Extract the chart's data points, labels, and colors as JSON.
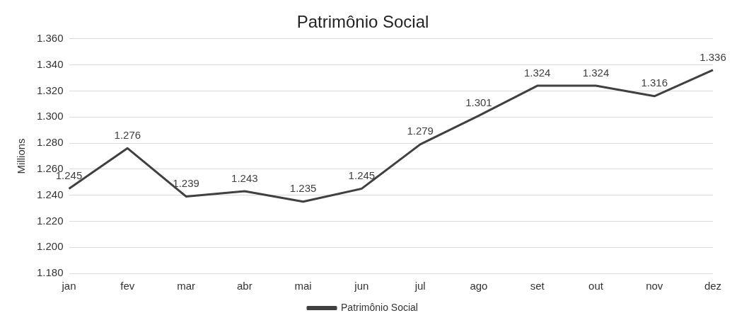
{
  "chart_data": {
    "type": "line",
    "title": "Patrimônio Social",
    "ylabel": "Millions",
    "categories": [
      "jan",
      "fev",
      "mar",
      "abr",
      "mai",
      "jun",
      "jul",
      "ago",
      "set",
      "out",
      "nov",
      "dez"
    ],
    "series": [
      {
        "name": "Patrimônio Social",
        "color": "#404040",
        "values": [
          1245,
          1276,
          1239,
          1243,
          1235,
          1245,
          1279,
          1301,
          1324,
          1324,
          1316,
          1336
        ],
        "value_labels": [
          "1.245",
          "1.276",
          "1.239",
          "1.243",
          "1.235",
          "1.245",
          "1.279",
          "1.301",
          "1.324",
          "1.324",
          "1.316",
          "1.336"
        ]
      }
    ],
    "ylim": [
      1180,
      1360
    ],
    "yticks": [
      {
        "value": 1180,
        "label": "1.180"
      },
      {
        "value": 1200,
        "label": "1.200"
      },
      {
        "value": 1220,
        "label": "1.220"
      },
      {
        "value": 1240,
        "label": "1.240"
      },
      {
        "value": 1260,
        "label": "1.260"
      },
      {
        "value": 1280,
        "label": "1.280"
      },
      {
        "value": 1300,
        "label": "1.300"
      },
      {
        "value": 1320,
        "label": "1.320"
      },
      {
        "value": 1340,
        "label": "1.340"
      },
      {
        "value": 1360,
        "label": "1.360"
      }
    ],
    "grid": "y",
    "legend": "bottom",
    "marker": "none",
    "line_style": "solid"
  }
}
